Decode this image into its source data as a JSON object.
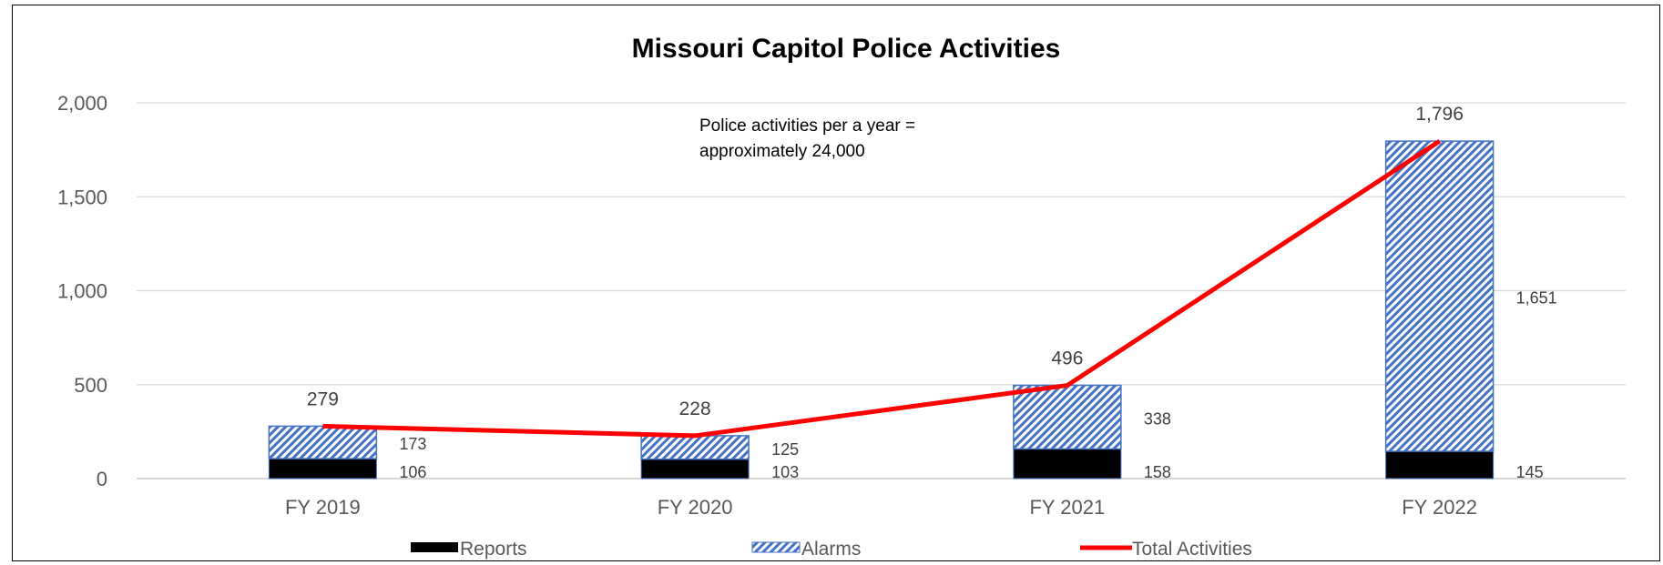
{
  "chart_data": {
    "type": "bar",
    "title": "Missouri Capitol Police Activities",
    "categories": [
      "FY 2019",
      "FY 2020",
      "FY 2021",
      "FY 2022"
    ],
    "series": [
      {
        "name": "Reports",
        "kind": "bar",
        "values": [
          106,
          103,
          158,
          145
        ],
        "color": "#000000",
        "labels": [
          "106",
          "103",
          "158",
          "145"
        ]
      },
      {
        "name": "Alarms",
        "kind": "bar",
        "values": [
          173,
          125,
          338,
          1651
        ],
        "color": "#4472c4",
        "pattern": "diagonal-hatch",
        "labels": [
          "173",
          "125",
          "338",
          "1,651"
        ]
      },
      {
        "name": "Total Activities",
        "kind": "line",
        "values": [
          279,
          228,
          496,
          1796
        ],
        "color": "#ff0000",
        "labels": [
          "279",
          "228",
          "496",
          "1,796"
        ]
      }
    ],
    "stacked": true,
    "ylim": [
      0,
      2000
    ],
    "yticks": [
      0,
      500,
      1000,
      1500,
      2000
    ],
    "ytick_labels": [
      "0",
      "500",
      "1,000",
      "1,500",
      "2,000"
    ],
    "grid": true,
    "legend_position": "bottom",
    "annotation": [
      "Police activities per a year =",
      "approximately 24,000"
    ]
  }
}
